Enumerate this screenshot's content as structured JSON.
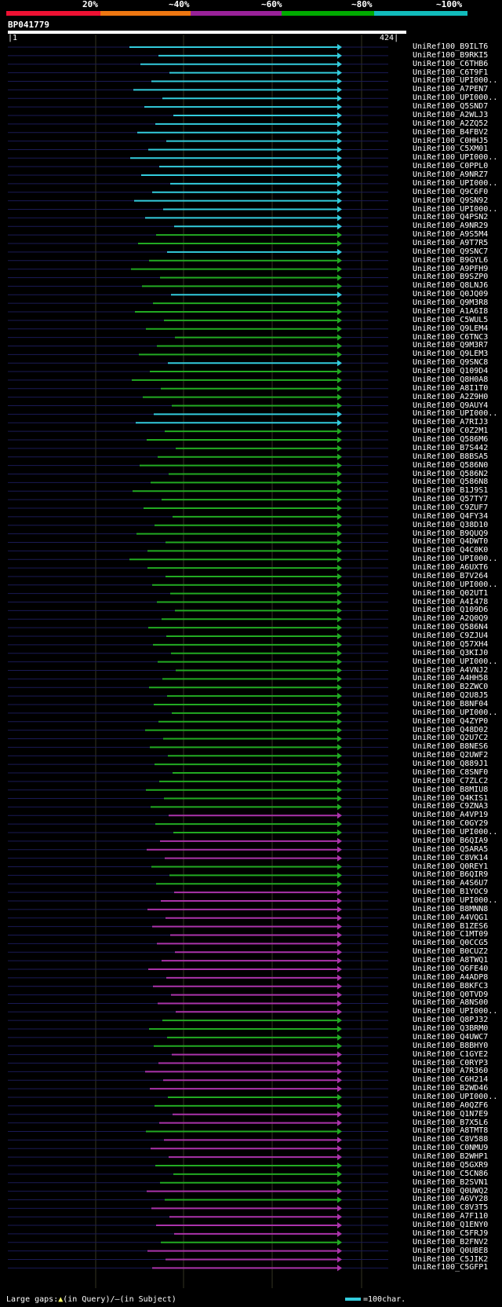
{
  "legend": {
    "labels": [
      "20%",
      "~40%",
      "~60%",
      "~80%",
      "~100%"
    ],
    "colors": [
      "#ee1133",
      "#ee7711",
      "#992299",
      "#00aa00",
      "#11bbbb"
    ]
  },
  "query": {
    "id": "BP041779",
    "start": "1",
    "end": "424"
  },
  "hits": [
    {
      "name": "UniRef100_B9ILT6",
      "color": "cyan"
    },
    {
      "name": "UniRef100_B9RKI5",
      "color": "cyan"
    },
    {
      "name": "UniRef100_C6THB6",
      "color": "cyan"
    },
    {
      "name": "UniRef100_C6T9F1",
      "color": "cyan"
    },
    {
      "name": "UniRef100_UPI000..",
      "color": "cyan"
    },
    {
      "name": "UniRef100_A7PEN7",
      "color": "cyan"
    },
    {
      "name": "UniRef100_UPI000..",
      "color": "cyan"
    },
    {
      "name": "UniRef100_Q5SND7",
      "color": "cyan"
    },
    {
      "name": "UniRef100_A2WLJ3",
      "color": "cyan"
    },
    {
      "name": "UniRef100_A2ZQ52",
      "color": "cyan"
    },
    {
      "name": "UniRef100_B4FBV2",
      "color": "cyan"
    },
    {
      "name": "UniRef100_C0HHJ5",
      "color": "cyan"
    },
    {
      "name": "UniRef100_C5XM01",
      "color": "cyan"
    },
    {
      "name": "UniRef100_UPI000..",
      "color": "cyan"
    },
    {
      "name": "UniRef100_C0PPL0",
      "color": "cyan"
    },
    {
      "name": "UniRef100_A9NRZ7",
      "color": "cyan"
    },
    {
      "name": "UniRef100_UPI000..",
      "color": "cyan"
    },
    {
      "name": "UniRef100_Q9C6F0",
      "color": "cyan"
    },
    {
      "name": "UniRef100_Q9SN92",
      "color": "cyan"
    },
    {
      "name": "UniRef100_UPI000..",
      "color": "cyan"
    },
    {
      "name": "UniRef100_Q4PSN2",
      "color": "cyan"
    },
    {
      "name": "UniRef100_A9NR29",
      "color": "cyan"
    },
    {
      "name": "UniRef100_A9S5M4",
      "color": "green"
    },
    {
      "name": "UniRef100_A9T7R5",
      "color": "green"
    },
    {
      "name": "UniRef100_Q9SNC7",
      "color": "cyan"
    },
    {
      "name": "UniRef100_B9GYL6",
      "color": "green"
    },
    {
      "name": "UniRef100_A9PFH9",
      "color": "green"
    },
    {
      "name": "UniRef100_B9SZP0",
      "color": "green"
    },
    {
      "name": "UniRef100_Q8LNJ6",
      "color": "green"
    },
    {
      "name": "UniRef100_Q0JQ09",
      "color": "cyan"
    },
    {
      "name": "UniRef100_Q9M3R8",
      "color": "green"
    },
    {
      "name": "UniRef100_A1A6I8",
      "color": "green"
    },
    {
      "name": "UniRef100_C5WUL5",
      "color": "green"
    },
    {
      "name": "UniRef100_Q9LEM4",
      "color": "green"
    },
    {
      "name": "UniRef100_C6TNC3",
      "color": "green"
    },
    {
      "name": "UniRef100_Q9M3R7",
      "color": "green"
    },
    {
      "name": "UniRef100_Q9LEM3",
      "color": "green"
    },
    {
      "name": "UniRef100_Q9SNC8",
      "color": "cyan"
    },
    {
      "name": "UniRef100_Q109D4",
      "color": "green"
    },
    {
      "name": "UniRef100_Q8H0A8",
      "color": "green"
    },
    {
      "name": "UniRef100_A8I1T0",
      "color": "green"
    },
    {
      "name": "UniRef100_A2Z9H0",
      "color": "green"
    },
    {
      "name": "UniRef100_Q9AUY4",
      "color": "green"
    },
    {
      "name": "UniRef100_UPI000..",
      "color": "cyan"
    },
    {
      "name": "UniRef100_A7RIJ3",
      "color": "cyan"
    },
    {
      "name": "UniRef100_C0Z2M1",
      "color": "green"
    },
    {
      "name": "UniRef100_Q586M6",
      "color": "green"
    },
    {
      "name": "UniRef100_B7S442",
      "color": "green"
    },
    {
      "name": "UniRef100_B8BSA5",
      "color": "green"
    },
    {
      "name": "UniRef100_Q586N0",
      "color": "green"
    },
    {
      "name": "UniRef100_Q586N2",
      "color": "green"
    },
    {
      "name": "UniRef100_Q586N8",
      "color": "green"
    },
    {
      "name": "UniRef100_B1J9S1",
      "color": "green"
    },
    {
      "name": "UniRef100_Q57TY7",
      "color": "green"
    },
    {
      "name": "UniRef100_C9ZUF7",
      "color": "green"
    },
    {
      "name": "UniRef100_Q4FY34",
      "color": "green"
    },
    {
      "name": "UniRef100_Q38D10",
      "color": "green"
    },
    {
      "name": "UniRef100_B9QUQ9",
      "color": "green"
    },
    {
      "name": "UniRef100_Q4DWT0",
      "color": "green"
    },
    {
      "name": "UniRef100_Q4C0K0",
      "color": "green"
    },
    {
      "name": "UniRef100_UPI000..",
      "color": "green"
    },
    {
      "name": "UniRef100_A6UXT6",
      "color": "green"
    },
    {
      "name": "UniRef100_B7V264",
      "color": "green"
    },
    {
      "name": "UniRef100_UPI000..",
      "color": "green"
    },
    {
      "name": "UniRef100_Q02UT1",
      "color": "green"
    },
    {
      "name": "UniRef100_A4I478",
      "color": "green"
    },
    {
      "name": "UniRef100_Q109D6",
      "color": "green"
    },
    {
      "name": "UniRef100_A2Q0Q9",
      "color": "green"
    },
    {
      "name": "UniRef100_Q586N4",
      "color": "green"
    },
    {
      "name": "UniRef100_C9ZJU4",
      "color": "green"
    },
    {
      "name": "UniRef100_Q57XH4",
      "color": "green"
    },
    {
      "name": "UniRef100_Q3KIJ0",
      "color": "green"
    },
    {
      "name": "UniRef100_UPI000..",
      "color": "green"
    },
    {
      "name": "UniRef100_A4VNJ2",
      "color": "green"
    },
    {
      "name": "UniRef100_A4HH58",
      "color": "green"
    },
    {
      "name": "UniRef100_B2ZWC0",
      "color": "green"
    },
    {
      "name": "UniRef100_Q2U8J5",
      "color": "green"
    },
    {
      "name": "UniRef100_B8NF04",
      "color": "green"
    },
    {
      "name": "UniRef100_UPI000..",
      "color": "green"
    },
    {
      "name": "UniRef100_Q4ZYP0",
      "color": "green"
    },
    {
      "name": "UniRef100_Q48D02",
      "color": "green"
    },
    {
      "name": "UniRef100_Q2U7C2",
      "color": "green"
    },
    {
      "name": "UniRef100_B8NES6",
      "color": "green"
    },
    {
      "name": "UniRef100_Q2UWF2",
      "color": "green"
    },
    {
      "name": "UniRef100_Q889J1",
      "color": "green"
    },
    {
      "name": "UniRef100_C8SNF0",
      "color": "green"
    },
    {
      "name": "UniRef100_C7ZLC2",
      "color": "green"
    },
    {
      "name": "UniRef100_B8MIU8",
      "color": "green"
    },
    {
      "name": "UniRef100_Q4KIS1",
      "color": "green"
    },
    {
      "name": "UniRef100_C9ZNA3",
      "color": "green"
    },
    {
      "name": "UniRef100_A4VP19",
      "color": "purple"
    },
    {
      "name": "UniRef100_C0GY29",
      "color": "green"
    },
    {
      "name": "UniRef100_UPI000..",
      "color": "green"
    },
    {
      "name": "UniRef100_B6QIA9",
      "color": "purple"
    },
    {
      "name": "UniRef100_Q5ARA5",
      "color": "purple"
    },
    {
      "name": "UniRef100_C8VK14",
      "color": "purple"
    },
    {
      "name": "UniRef100_Q0REY1",
      "color": "green"
    },
    {
      "name": "UniRef100_B6QIR9",
      "color": "green"
    },
    {
      "name": "UniRef100_A4S6U7",
      "color": "green"
    },
    {
      "name": "UniRef100_B1YOC9",
      "color": "purple"
    },
    {
      "name": "UniRef100_UPI000..",
      "color": "purple"
    },
    {
      "name": "UniRef100_B8MNN8",
      "color": "purple"
    },
    {
      "name": "UniRef100_A4VQG1",
      "color": "purple"
    },
    {
      "name": "UniRef100_B1ZES6",
      "color": "purple"
    },
    {
      "name": "UniRef100_C1MT09",
      "color": "purple"
    },
    {
      "name": "UniRef100_Q0CCG5",
      "color": "purple"
    },
    {
      "name": "UniRef100_B0CUZ2",
      "color": "purple"
    },
    {
      "name": "UniRef100_A8TWQ1",
      "color": "purple"
    },
    {
      "name": "UniRef100_Q6FE40",
      "color": "purple"
    },
    {
      "name": "UniRef100_A4ADP8",
      "color": "purple"
    },
    {
      "name": "UniRef100_B8KFC3",
      "color": "purple"
    },
    {
      "name": "UniRef100_Q0TVD9",
      "color": "purple"
    },
    {
      "name": "UniRef100_A8NS00",
      "color": "purple"
    },
    {
      "name": "UniRef100_UPI000..",
      "color": "purple"
    },
    {
      "name": "UniRef100_Q8PJ32",
      "color": "green"
    },
    {
      "name": "UniRef100_Q3BRM0",
      "color": "green"
    },
    {
      "name": "UniRef100_Q4UWC7",
      "color": "green"
    },
    {
      "name": "UniRef100_B8BHY0",
      "color": "green"
    },
    {
      "name": "UniRef100_C1GYE2",
      "color": "purple"
    },
    {
      "name": "UniRef100_C0RYP3",
      "color": "purple"
    },
    {
      "name": "UniRef100_A7R360",
      "color": "purple"
    },
    {
      "name": "UniRef100_C6H214",
      "color": "purple"
    },
    {
      "name": "UniRef100_B2WD46",
      "color": "purple"
    },
    {
      "name": "UniRef100_UPI000..",
      "color": "green"
    },
    {
      "name": "UniRef100_A0QZF6",
      "color": "green"
    },
    {
      "name": "UniRef100_Q1N7E9",
      "color": "purple"
    },
    {
      "name": "UniRef100_B7X5L6",
      "color": "purple"
    },
    {
      "name": "UniRef100_A8TMT8",
      "color": "green"
    },
    {
      "name": "UniRef100_C8V588",
      "color": "purple"
    },
    {
      "name": "UniRef100_C0NMU9",
      "color": "purple"
    },
    {
      "name": "UniRef100_B2WHP1",
      "color": "purple"
    },
    {
      "name": "UniRef100_Q5GXR9",
      "color": "green"
    },
    {
      "name": "UniRef100_C5CN86",
      "color": "green"
    },
    {
      "name": "UniRef100_B2SVN1",
      "color": "green"
    },
    {
      "name": "UniRef100_Q0UWQ2",
      "color": "purple"
    },
    {
      "name": "UniRef100_A6VY28",
      "color": "green"
    },
    {
      "name": "UniRef100_C8V3T5",
      "color": "purple"
    },
    {
      "name": "UniRef100_A7F110",
      "color": "purple"
    },
    {
      "name": "UniRef100_Q1ENY0",
      "color": "purple"
    },
    {
      "name": "UniRef100_C5FRJ9",
      "color": "purple"
    },
    {
      "name": "UniRef100_B2FNV2",
      "color": "green"
    },
    {
      "name": "UniRef100_Q0UBE8",
      "color": "purple"
    },
    {
      "name": "UniRef100_C5JIK2",
      "color": "purple"
    },
    {
      "name": "UniRef100_C5GFP1",
      "color": "purple"
    }
  ],
  "footer": {
    "large_gaps_label": "Large gaps:",
    "query_gap_symbol": "▲",
    "query_gap_text": "(in Query)/",
    "subject_gap_symbol": "—",
    "subject_gap_text": "(in Subject)",
    "scale_text": "=100char."
  }
}
